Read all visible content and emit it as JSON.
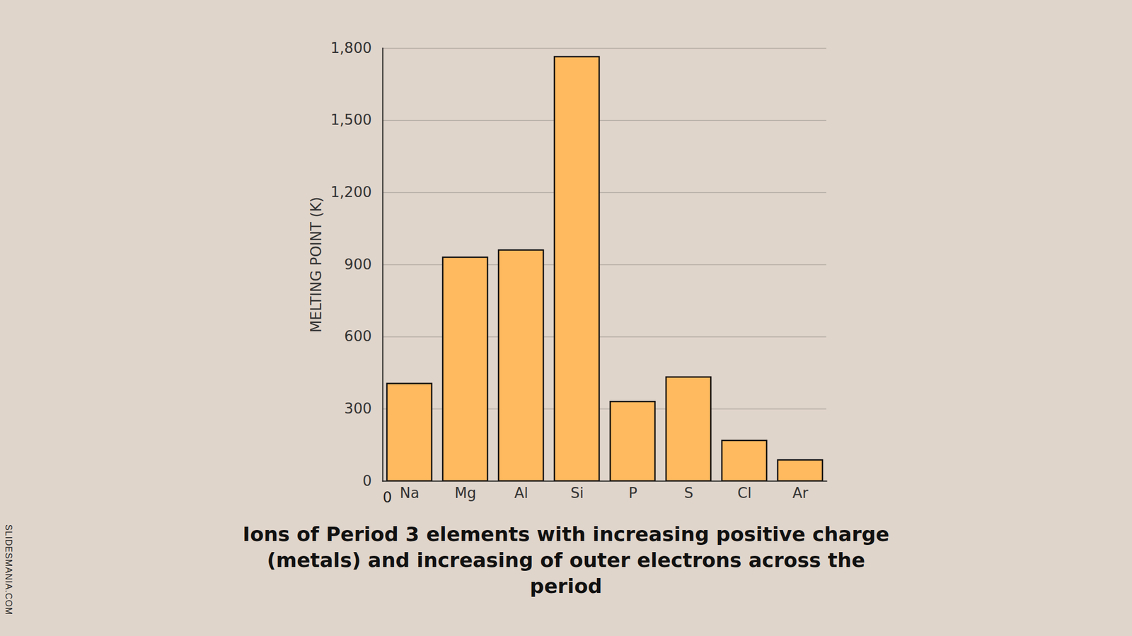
{
  "chart_data": {
    "type": "bar",
    "caption": "Ions of Period 3 elements with increasing positive charge (metals) and increasing of outer electrons across the period",
    "y_label": "MELTING POINT (K)",
    "categories": [
      "Na",
      "Mg",
      "Al",
      "Si",
      "P",
      "S",
      "Cl",
      "Ar"
    ],
    "values": [
      405,
      930,
      960,
      1764,
      330,
      432,
      168,
      87
    ],
    "color": "#ffb95e",
    "ylim": [
      0,
      1800
    ],
    "yticks": [
      0,
      300,
      600,
      900,
      1200,
      1500,
      1800
    ],
    "grid": true,
    "annotations": [
      "0"
    ],
    "credit": "SLIDESMANIA.COM"
  }
}
